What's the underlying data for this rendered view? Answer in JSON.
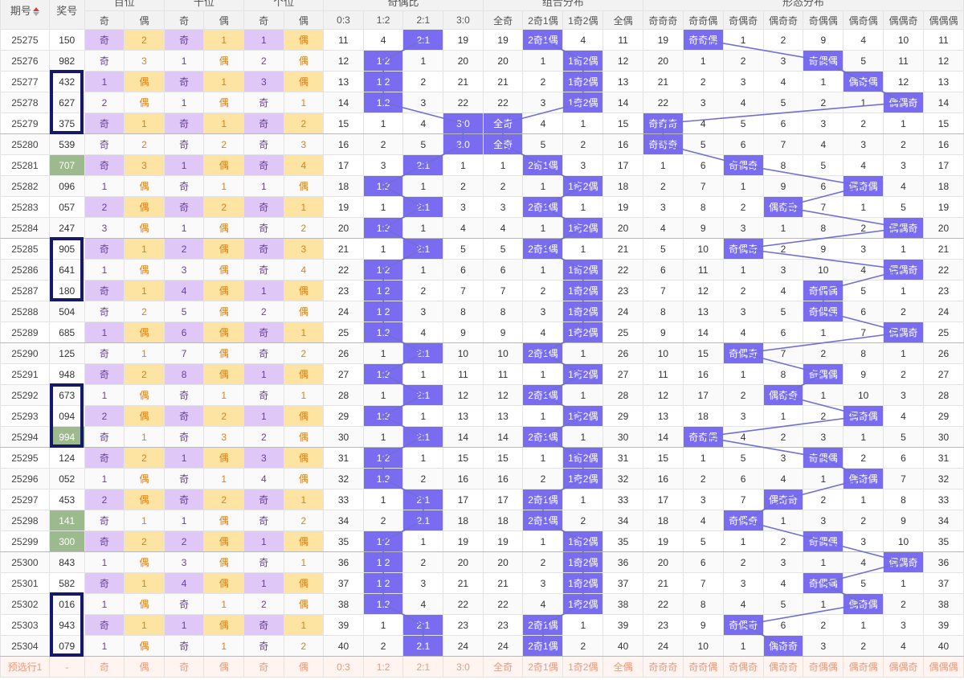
{
  "header": {
    "period_label": "期号",
    "prize_label": "奖号",
    "groups": [
      "百位",
      "十位",
      "个位",
      "奇偶比",
      "组合分布",
      "形态分布"
    ],
    "digit_sub": [
      "奇",
      "偶"
    ],
    "ratio_sub": [
      "0:3",
      "1:2",
      "2:1",
      "3:0"
    ],
    "combo_sub": [
      "全奇",
      "2奇1偶",
      "1奇2偶",
      "全偶"
    ],
    "shape_sub": [
      "奇奇奇",
      "奇奇偶",
      "奇偶奇",
      "偶奇奇",
      "奇偶偶",
      "偶奇偶",
      "偶偶奇",
      "偶偶偶"
    ]
  },
  "rows": [
    {
      "p": "25275",
      "n": "150",
      "b": [
        "奇",
        "2"
      ],
      "s": [
        "奇",
        "1"
      ],
      "g": [
        "1",
        "偶"
      ],
      "r": [
        "11",
        "4",
        "2:1",
        "19"
      ],
      "c": [
        "19",
        "2奇1偶",
        "4",
        "11"
      ],
      "f": [
        "19",
        "奇奇偶",
        "1",
        "2",
        "9",
        "4",
        "10",
        "11"
      ]
    },
    {
      "p": "25276",
      "n": "982",
      "b": [
        "奇",
        "3"
      ],
      "s": [
        "1",
        "偶"
      ],
      "g": [
        "2",
        "偶"
      ],
      "r": [
        "12",
        "1:2",
        "1",
        "20"
      ],
      "c": [
        "20",
        "1",
        "1奇2偶",
        "12"
      ],
      "f": [
        "20",
        "1",
        "2",
        "3",
        "奇偶偶",
        "5",
        "11",
        "12"
      ]
    },
    {
      "p": "25277",
      "n": "432",
      "b": [
        "1",
        "偶"
      ],
      "s": [
        "奇",
        "1"
      ],
      "g": [
        "3",
        "偶"
      ],
      "r": [
        "13",
        "1:2",
        "2",
        "21"
      ],
      "c": [
        "21",
        "2",
        "1奇2偶",
        "13"
      ],
      "f": [
        "21",
        "2",
        "3",
        "4",
        "1",
        "偶奇偶",
        "12",
        "13"
      ]
    },
    {
      "p": "25278",
      "n": "627",
      "b": [
        "2",
        "偶"
      ],
      "s": [
        "1",
        "偶"
      ],
      "g": [
        "奇",
        "1"
      ],
      "r": [
        "14",
        "1:2",
        "3",
        "22"
      ],
      "c": [
        "22",
        "3",
        "1奇2偶",
        "14"
      ],
      "f": [
        "22",
        "3",
        "4",
        "5",
        "2",
        "1",
        "偶偶奇",
        "14"
      ]
    },
    {
      "p": "25279",
      "n": "375",
      "b": [
        "奇",
        "1"
      ],
      "s": [
        "奇",
        "1"
      ],
      "g": [
        "奇",
        "2"
      ],
      "r": [
        "15",
        "1",
        "4",
        "3:0"
      ],
      "c": [
        "全奇",
        "4",
        "1",
        "15"
      ],
      "f": [
        "奇奇奇",
        "4",
        "5",
        "6",
        "3",
        "2",
        "1",
        "15"
      ]
    },
    {
      "p": "25280",
      "n": "539",
      "b": [
        "奇",
        "2"
      ],
      "s": [
        "奇",
        "2"
      ],
      "g": [
        "奇",
        "3"
      ],
      "r": [
        "16",
        "2",
        "5",
        "3:0"
      ],
      "c": [
        "全奇",
        "5",
        "2",
        "16"
      ],
      "f": [
        "奇奇奇",
        "5",
        "6",
        "7",
        "4",
        "3",
        "2",
        "16"
      ]
    },
    {
      "p": "25281",
      "n": "707",
      "b": [
        "奇",
        "3"
      ],
      "s": [
        "1",
        "偶"
      ],
      "g": [
        "奇",
        "4"
      ],
      "r": [
        "17",
        "3",
        "2:1",
        "1"
      ],
      "c": [
        "1",
        "2奇1偶",
        "3",
        "17"
      ],
      "f": [
        "1",
        "6",
        "奇偶奇",
        "8",
        "5",
        "4",
        "3",
        "17"
      ]
    },
    {
      "p": "25282",
      "n": "096",
      "b": [
        "1",
        "偶"
      ],
      "s": [
        "奇",
        "1"
      ],
      "g": [
        "1",
        "偶"
      ],
      "r": [
        "18",
        "1:2",
        "1",
        "2"
      ],
      "c": [
        "2",
        "1",
        "1奇2偶",
        "18"
      ],
      "f": [
        "2",
        "7",
        "1",
        "9",
        "6",
        "偶奇偶",
        "4",
        "18"
      ]
    },
    {
      "p": "25283",
      "n": "057",
      "b": [
        "2",
        "偶"
      ],
      "s": [
        "奇",
        "2"
      ],
      "g": [
        "奇",
        "1"
      ],
      "r": [
        "19",
        "1",
        "2:1",
        "3"
      ],
      "c": [
        "3",
        "2奇1偶",
        "1",
        "19"
      ],
      "f": [
        "3",
        "8",
        "2",
        "偶奇奇",
        "7",
        "1",
        "5",
        "19"
      ]
    },
    {
      "p": "25284",
      "n": "247",
      "b": [
        "3",
        "偶"
      ],
      "s": [
        "1",
        "偶"
      ],
      "g": [
        "奇",
        "2"
      ],
      "r": [
        "20",
        "1:2",
        "1",
        "4"
      ],
      "c": [
        "4",
        "1",
        "1奇2偶",
        "20"
      ],
      "f": [
        "4",
        "9",
        "3",
        "1",
        "8",
        "2",
        "偶偶奇",
        "20"
      ]
    },
    {
      "p": "25285",
      "n": "905",
      "b": [
        "奇",
        "1"
      ],
      "s": [
        "2",
        "偶"
      ],
      "g": [
        "奇",
        "3"
      ],
      "r": [
        "21",
        "1",
        "2:1",
        "5"
      ],
      "c": [
        "5",
        "2奇1偶",
        "1",
        "21"
      ],
      "f": [
        "5",
        "10",
        "奇偶奇",
        "2",
        "9",
        "3",
        "1",
        "21"
      ]
    },
    {
      "p": "25286",
      "n": "641",
      "b": [
        "1",
        "偶"
      ],
      "s": [
        "3",
        "偶"
      ],
      "g": [
        "奇",
        "4"
      ],
      "r": [
        "22",
        "1:2",
        "1",
        "6"
      ],
      "c": [
        "6",
        "1",
        "1奇2偶",
        "22"
      ],
      "f": [
        "6",
        "11",
        "1",
        "3",
        "10",
        "4",
        "偶偶奇",
        "22"
      ]
    },
    {
      "p": "25287",
      "n": "180",
      "b": [
        "奇",
        "1"
      ],
      "s": [
        "4",
        "偶"
      ],
      "g": [
        "1",
        "偶"
      ],
      "r": [
        "23",
        "1:2",
        "2",
        "7"
      ],
      "c": [
        "7",
        "2",
        "1奇2偶",
        "23"
      ],
      "f": [
        "7",
        "12",
        "2",
        "4",
        "奇偶偶",
        "5",
        "1",
        "23"
      ]
    },
    {
      "p": "25288",
      "n": "504",
      "b": [
        "奇",
        "2"
      ],
      "s": [
        "5",
        "偶"
      ],
      "g": [
        "2",
        "偶"
      ],
      "r": [
        "24",
        "1:2",
        "3",
        "8"
      ],
      "c": [
        "8",
        "3",
        "1奇2偶",
        "24"
      ],
      "f": [
        "8",
        "13",
        "3",
        "5",
        "奇偶偶",
        "6",
        "2",
        "24"
      ]
    },
    {
      "p": "25289",
      "n": "685",
      "b": [
        "1",
        "偶"
      ],
      "s": [
        "6",
        "偶"
      ],
      "g": [
        "奇",
        "1"
      ],
      "r": [
        "25",
        "1:2",
        "4",
        "9"
      ],
      "c": [
        "9",
        "4",
        "1奇2偶",
        "25"
      ],
      "f": [
        "9",
        "14",
        "4",
        "6",
        "1",
        "7",
        "偶偶奇",
        "25"
      ]
    },
    {
      "p": "25290",
      "n": "125",
      "b": [
        "奇",
        "1"
      ],
      "s": [
        "7",
        "偶"
      ],
      "g": [
        "奇",
        "2"
      ],
      "r": [
        "26",
        "1",
        "2:1",
        "10"
      ],
      "c": [
        "10",
        "2奇1偶",
        "1",
        "26"
      ],
      "f": [
        "10",
        "15",
        "奇偶奇",
        "7",
        "2",
        "8",
        "1",
        "26"
      ]
    },
    {
      "p": "25291",
      "n": "948",
      "b": [
        "奇",
        "2"
      ],
      "s": [
        "8",
        "偶"
      ],
      "g": [
        "1",
        "偶"
      ],
      "r": [
        "27",
        "1:2",
        "1",
        "11"
      ],
      "c": [
        "11",
        "1",
        "1奇2偶",
        "27"
      ],
      "f": [
        "11",
        "16",
        "1",
        "8",
        "奇偶偶",
        "9",
        "2",
        "27"
      ]
    },
    {
      "p": "25292",
      "n": "673",
      "b": [
        "1",
        "偶"
      ],
      "s": [
        "奇",
        "1"
      ],
      "g": [
        "奇",
        "1"
      ],
      "r": [
        "28",
        "1",
        "2:1",
        "12"
      ],
      "c": [
        "12",
        "2奇1偶",
        "1",
        "28"
      ],
      "f": [
        "12",
        "17",
        "2",
        "偶奇奇",
        "1",
        "10",
        "3",
        "28"
      ]
    },
    {
      "p": "25293",
      "n": "094",
      "b": [
        "2",
        "偶"
      ],
      "s": [
        "奇",
        "2"
      ],
      "g": [
        "1",
        "偶"
      ],
      "r": [
        "29",
        "1:2",
        "1",
        "13"
      ],
      "c": [
        "13",
        "1",
        "1奇2偶",
        "29"
      ],
      "f": [
        "13",
        "18",
        "3",
        "1",
        "2",
        "偶奇偶",
        "4",
        "29"
      ]
    },
    {
      "p": "25294",
      "n": "994",
      "b": [
        "奇",
        "1"
      ],
      "s": [
        "奇",
        "3"
      ],
      "g": [
        "2",
        "偶"
      ],
      "r": [
        "30",
        "1",
        "2:1",
        "14"
      ],
      "c": [
        "14",
        "2奇1偶",
        "1",
        "30"
      ],
      "f": [
        "14",
        "奇奇偶",
        "4",
        "2",
        "3",
        "1",
        "5",
        "30"
      ]
    },
    {
      "p": "25295",
      "n": "124",
      "b": [
        "奇",
        "2"
      ],
      "s": [
        "1",
        "偶"
      ],
      "g": [
        "3",
        "偶"
      ],
      "r": [
        "31",
        "1:2",
        "1",
        "15"
      ],
      "c": [
        "15",
        "1",
        "1奇2偶",
        "31"
      ],
      "f": [
        "15",
        "1",
        "5",
        "3",
        "奇偶偶",
        "2",
        "6",
        "31"
      ]
    },
    {
      "p": "25296",
      "n": "052",
      "b": [
        "1",
        "偶"
      ],
      "s": [
        "奇",
        "1"
      ],
      "g": [
        "4",
        "偶"
      ],
      "r": [
        "32",
        "1:2",
        "2",
        "16"
      ],
      "c": [
        "16",
        "2",
        "1奇2偶",
        "32"
      ],
      "f": [
        "16",
        "2",
        "6",
        "4",
        "1",
        "偶奇偶",
        "7",
        "32"
      ]
    },
    {
      "p": "25297",
      "n": "453",
      "b": [
        "2",
        "偶"
      ],
      "s": [
        "奇",
        "2"
      ],
      "g": [
        "奇",
        "1"
      ],
      "r": [
        "33",
        "1",
        "2:1",
        "17"
      ],
      "c": [
        "17",
        "2奇1偶",
        "1",
        "33"
      ],
      "f": [
        "17",
        "3",
        "7",
        "偶奇奇",
        "2",
        "1",
        "8",
        "33"
      ]
    },
    {
      "p": "25298",
      "n": "141",
      "b": [
        "奇",
        "1"
      ],
      "s": [
        "1",
        "偶"
      ],
      "g": [
        "奇",
        "2"
      ],
      "r": [
        "34",
        "2",
        "2:1",
        "18"
      ],
      "c": [
        "18",
        "2奇1偶",
        "2",
        "34"
      ],
      "f": [
        "18",
        "4",
        "奇偶奇",
        "1",
        "3",
        "2",
        "9",
        "34"
      ]
    },
    {
      "p": "25299",
      "n": "300",
      "b": [
        "奇",
        "2"
      ],
      "s": [
        "2",
        "偶"
      ],
      "g": [
        "1",
        "偶"
      ],
      "r": [
        "35",
        "1:2",
        "1",
        "19"
      ],
      "c": [
        "19",
        "1",
        "1奇2偶",
        "35"
      ],
      "f": [
        "19",
        "5",
        "1",
        "2",
        "奇偶偶",
        "3",
        "10",
        "35"
      ]
    },
    {
      "p": "25300",
      "n": "843",
      "b": [
        "1",
        "偶"
      ],
      "s": [
        "3",
        "偶"
      ],
      "g": [
        "奇",
        "1"
      ],
      "r": [
        "36",
        "1:2",
        "2",
        "20"
      ],
      "c": [
        "20",
        "2",
        "1奇2偶",
        "36"
      ],
      "f": [
        "20",
        "6",
        "2",
        "3",
        "1",
        "4",
        "偶偶奇",
        "36"
      ]
    },
    {
      "p": "25301",
      "n": "582",
      "b": [
        "奇",
        "1"
      ],
      "s": [
        "4",
        "偶"
      ],
      "g": [
        "1",
        "偶"
      ],
      "r": [
        "37",
        "1:2",
        "3",
        "21"
      ],
      "c": [
        "21",
        "3",
        "1奇2偶",
        "37"
      ],
      "f": [
        "21",
        "7",
        "3",
        "4",
        "奇偶偶",
        "5",
        "1",
        "37"
      ]
    },
    {
      "p": "25302",
      "n": "016",
      "b": [
        "1",
        "偶"
      ],
      "s": [
        "奇",
        "1"
      ],
      "g": [
        "2",
        "偶"
      ],
      "r": [
        "38",
        "1:2",
        "4",
        "22"
      ],
      "c": [
        "22",
        "4",
        "1奇2偶",
        "38"
      ],
      "f": [
        "22",
        "8",
        "4",
        "5",
        "1",
        "偶奇偶",
        "2",
        "38"
      ]
    },
    {
      "p": "25303",
      "n": "943",
      "b": [
        "奇",
        "1"
      ],
      "s": [
        "1",
        "偶"
      ],
      "g": [
        "奇",
        "1"
      ],
      "r": [
        "39",
        "1",
        "2:1",
        "23"
      ],
      "c": [
        "23",
        "2奇1偶",
        "1",
        "39"
      ],
      "f": [
        "23",
        "9",
        "奇偶奇",
        "6",
        "2",
        "1",
        "3",
        "39"
      ]
    },
    {
      "p": "25304",
      "n": "079",
      "b": [
        "1",
        "偶"
      ],
      "s": [
        "奇",
        "1"
      ],
      "g": [
        "奇",
        "2"
      ],
      "r": [
        "40",
        "2",
        "2:1",
        "24"
      ],
      "c": [
        "24",
        "2奇1偶",
        "2",
        "40"
      ],
      "f": [
        "24",
        "10",
        "1",
        "偶奇奇",
        "3",
        "2",
        "4",
        "40"
      ]
    }
  ],
  "highlight_prize": [
    "25281",
    "25294",
    "25298",
    "25299"
  ],
  "preselect": {
    "label": "预选行1",
    "prize": "-",
    "cells": [
      "奇",
      "偶",
      "奇",
      "偶",
      "奇",
      "偶",
      "0:3",
      "1:2",
      "2:1",
      "3:0",
      "全奇",
      "2奇1偶",
      "1奇2偶",
      "全偶",
      "奇奇奇",
      "奇奇偶",
      "奇偶奇",
      "偶奇奇",
      "奇偶偶",
      "偶奇偶",
      "偶偶奇",
      "偶偶偶"
    ]
  },
  "boxes": [
    [
      "25277",
      "25279"
    ],
    [
      "25285",
      "25287"
    ],
    [
      "25292",
      "25294"
    ],
    [
      "25302",
      "25304"
    ]
  ],
  "colors": {
    "odd": "#dfc8f7",
    "even": "#fde4a3",
    "hit": "#7a6cf0",
    "green": "#9dba8e",
    "box": "#14196b"
  }
}
